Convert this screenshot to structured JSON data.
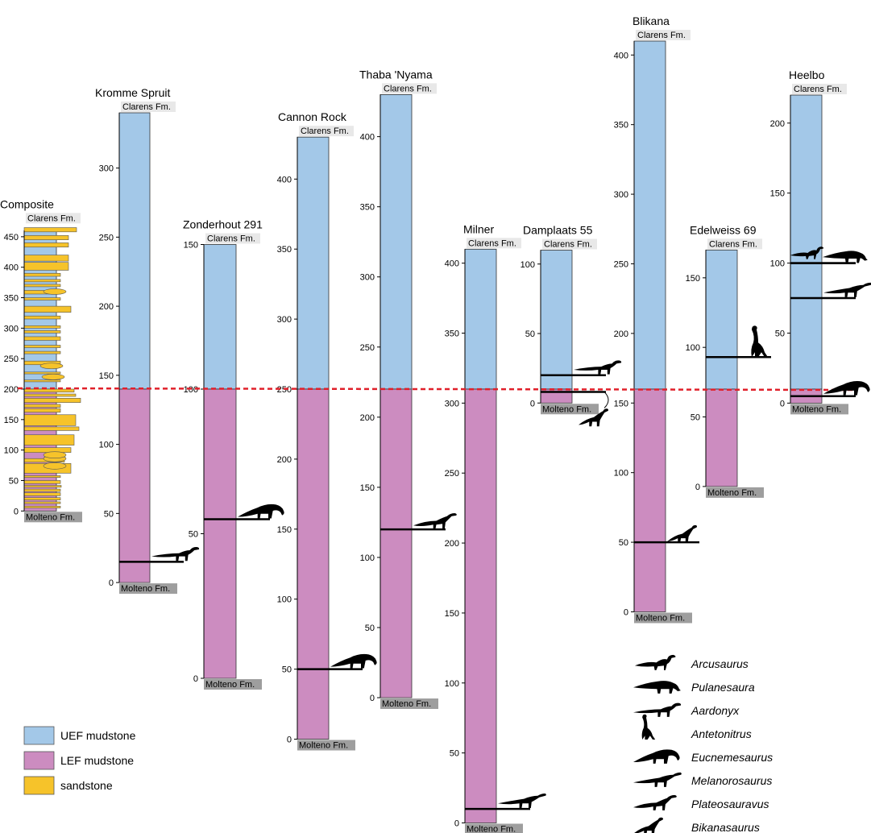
{
  "formations": {
    "top": "Clarens Fm.",
    "bottom": "Molteno Fm."
  },
  "colors": {
    "uef": "#a3c8e8",
    "lef": "#cc8cc0",
    "sand": "#f6c32a",
    "boundary": "#e0202a",
    "fmTop": "#e8e8e8",
    "fmBottom": "#9e9e9e"
  },
  "legend": [
    {
      "key": "uef",
      "label": "UEF mudstone"
    },
    {
      "key": "lef",
      "label": "LEF mudstone"
    },
    {
      "key": "sand",
      "label": "sandstone"
    }
  ],
  "taxa": [
    {
      "name": "Arcusaurus",
      "icon": "arcusaurus-icon"
    },
    {
      "name": "Pulanesaura",
      "icon": "pulanesaura-icon"
    },
    {
      "name": "Aardonyx",
      "icon": "aardonyx-icon"
    },
    {
      "name": "Antetonitrus",
      "icon": "antetonitrus-icon"
    },
    {
      "name": "Eucnemesaurus",
      "icon": "eucnemesaurus-icon"
    },
    {
      "name": "Melanorosaurus",
      "icon": "melanorosaurus-icon"
    },
    {
      "name": "Plateosauravus",
      "icon": "plateosauravus-icon"
    },
    {
      "name": "Bikanasaurus",
      "icon": "bikanasaurus-icon"
    }
  ],
  "sections": [
    {
      "id": "composite",
      "name": "Composite",
      "height": 460,
      "boundary": 200,
      "ticks": [
        0,
        50,
        100,
        150,
        200,
        250,
        300,
        350,
        400,
        450
      ],
      "fossils": []
    },
    {
      "id": "kromme-spruit",
      "name": "Kromme Spruit",
      "height": 340,
      "boundary": 140,
      "ticks": [
        0,
        50,
        100,
        150,
        200,
        250,
        300
      ],
      "fossils": [
        {
          "level": 15,
          "icon": "aardonyx-icon"
        }
      ]
    },
    {
      "id": "zonderhout-291",
      "name": "Zonderhout 291",
      "height": 150,
      "boundary": 100,
      "ticks": [
        0,
        50,
        100,
        150
      ],
      "fossils": [
        {
          "level": 55,
          "icon": "eucnemesaurus-icon"
        }
      ]
    },
    {
      "id": "cannon-rock",
      "name": "Cannon Rock",
      "height": 430,
      "boundary": 250,
      "ticks": [
        0,
        50,
        100,
        150,
        200,
        250,
        300,
        350,
        400
      ],
      "fossils": [
        {
          "level": 50,
          "icon": "eucnemesaurus-icon"
        }
      ]
    },
    {
      "id": "thaba-nyama",
      "name": "Thaba 'Nyama",
      "height": 430,
      "boundary": 220,
      "ticks": [
        0,
        50,
        100,
        150,
        200,
        250,
        300,
        350,
        400
      ],
      "fossils": [
        {
          "level": 120,
          "icon": "plateosauravus-icon"
        }
      ]
    },
    {
      "id": "milner",
      "name": "Milner",
      "height": 410,
      "boundary": 310,
      "ticks": [
        0,
        50,
        100,
        150,
        200,
        250,
        300,
        350,
        400
      ],
      "fossils": [
        {
          "level": 10,
          "icon": "melanorosaurus-icon"
        }
      ]
    },
    {
      "id": "damplaats-55",
      "name": "Damplaats 55",
      "height": 110,
      "boundary": 10,
      "ticks": [
        0,
        50,
        100
      ],
      "fossils": [
        {
          "level": 20,
          "icon": "aardonyx-icon"
        },
        {
          "level": 8,
          "icon": "bikanasaurus-icon"
        }
      ]
    },
    {
      "id": "blikana",
      "name": "Blikana",
      "height": 410,
      "boundary": 160,
      "ticks": [
        0,
        50,
        100,
        150,
        200,
        250,
        300,
        350,
        400
      ],
      "fossils": [
        {
          "level": 50,
          "icon": "bikanasaurus-icon"
        }
      ]
    },
    {
      "id": "edelweiss-69",
      "name": "Edelweiss 69",
      "height": 170,
      "boundary": 70,
      "ticks": [
        0,
        50,
        100,
        150
      ],
      "fossils": [
        {
          "level": 93,
          "icon": "antetonitrus-icon"
        }
      ]
    },
    {
      "id": "heelbo",
      "name": "Heelbo",
      "height": 220,
      "boundary": 10,
      "ticks": [
        0,
        50,
        100,
        150,
        200
      ],
      "fossils": [
        {
          "level": 100,
          "icon": "arcusaurus-icon"
        },
        {
          "level": 100,
          "icon": "pulanesaura-icon"
        },
        {
          "level": 75,
          "icon": "melanorosaurus-icon"
        },
        {
          "level": 5,
          "icon": "eucnemesaurus-icon"
        }
      ]
    }
  ]
}
